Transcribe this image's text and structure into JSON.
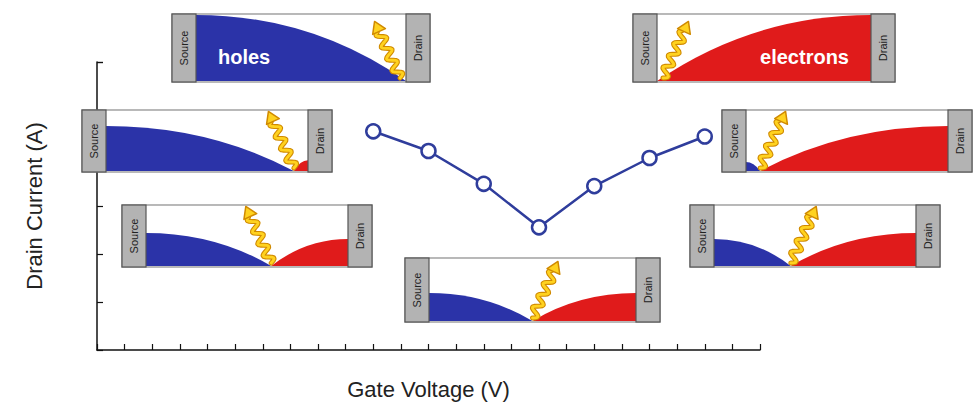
{
  "chart_data": {
    "type": "line",
    "x_label": "Gate Voltage (V)",
    "y_label": "Drain Current (A)",
    "x": [
      -3,
      -2,
      -1,
      0,
      1,
      2,
      3
    ],
    "values": [
      3.6e-08,
      1.4e-08,
      2.9e-09,
      3.6e-10,
      2.6e-09,
      1e-08,
      2.8e-08
    ],
    "color": "#2f3d9c",
    "marker": "circle",
    "xlim": [
      -8,
      4
    ],
    "xticks": [
      -8,
      -7.5,
      -7,
      -6.5,
      -6,
      -5.5,
      -5,
      -4.5,
      -4,
      -3.5,
      -3,
      -2.5,
      -2,
      -1.5,
      -1,
      -0.5,
      0,
      0.5,
      1,
      1.5,
      2,
      2.5,
      3,
      3.5,
      4
    ],
    "ylim": [
      1e-12,
      1e-06
    ],
    "yticks": [
      1e-12,
      1e-11,
      1e-10,
      1e-09,
      1e-08,
      1e-07,
      1e-06
    ],
    "log": "y",
    "grid": false,
    "tick_labels": false,
    "insets": [
      {
        "source": "Source",
        "drain": "Drain",
        "carriers": "holes"
      },
      {
        "source": "Source",
        "drain": "Drain"
      },
      {
        "source": "Source",
        "drain": "Drain"
      },
      {
        "source": "Source",
        "drain": "Drain"
      },
      {
        "source": "Source",
        "drain": "Drain"
      },
      {
        "source": "Source",
        "drain": "Drain"
      },
      {
        "source": "Source",
        "drain": "Drain",
        "carriers": "electrons"
      }
    ]
  }
}
